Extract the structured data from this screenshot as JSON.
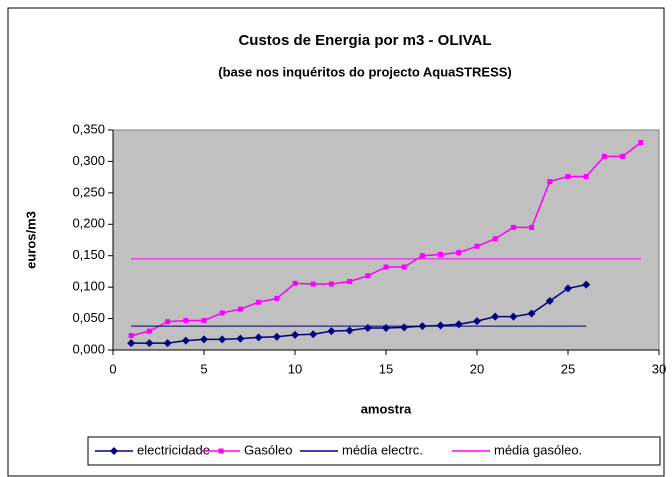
{
  "chart_data": {
    "type": "line",
    "title": "Custos de Energia por m3 - OLIVAL",
    "subtitle": "(base nos inquéritos do projecto AquaSTRESS)",
    "xlabel": "amostra",
    "ylabel": "euros/m3",
    "xlim": [
      0,
      30
    ],
    "xticks": [
      0,
      5,
      10,
      15,
      20,
      25,
      30
    ],
    "ylim": [
      0,
      0.35
    ],
    "yticks": [
      {
        "value": 0,
        "label": "0,000"
      },
      {
        "value": 0.05,
        "label": "0,050"
      },
      {
        "value": 0.1,
        "label": "0,100"
      },
      {
        "value": 0.15,
        "label": "0,150"
      },
      {
        "value": 0.2,
        "label": "0,200"
      },
      {
        "value": 0.25,
        "label": "0,250"
      },
      {
        "value": 0.3,
        "label": "0,300"
      },
      {
        "value": 0.35,
        "label": "0,350"
      }
    ],
    "legend": "bottom",
    "series": [
      {
        "name": "electricidade",
        "color": "#000080",
        "marker": "diamond",
        "x": [
          1,
          2,
          3,
          4,
          5,
          6,
          7,
          8,
          9,
          10,
          11,
          12,
          13,
          14,
          15,
          16,
          17,
          18,
          19,
          20,
          21,
          22,
          23,
          24,
          25,
          26
        ],
        "values": [
          0.011,
          0.011,
          0.011,
          0.015,
          0.017,
          0.017,
          0.018,
          0.02,
          0.021,
          0.024,
          0.025,
          0.03,
          0.031,
          0.035,
          0.035,
          0.036,
          0.038,
          0.039,
          0.041,
          0.046,
          0.053,
          0.053,
          0.058,
          0.078,
          0.098,
          0.104
        ]
      },
      {
        "name": "Gasóleo",
        "color": "#ff00ff",
        "marker": "square",
        "x": [
          1,
          2,
          3,
          4,
          5,
          6,
          7,
          8,
          9,
          10,
          11,
          12,
          13,
          14,
          15,
          16,
          17,
          18,
          19,
          20,
          21,
          22,
          23,
          24,
          25,
          26,
          27,
          28,
          29
        ],
        "values": [
          0.023,
          0.03,
          0.045,
          0.047,
          0.047,
          0.059,
          0.065,
          0.076,
          0.082,
          0.106,
          0.105,
          0.105,
          0.109,
          0.118,
          0.132,
          0.132,
          0.15,
          0.152,
          0.155,
          0.165,
          0.177,
          0.195,
          0.195,
          0.268,
          0.276,
          0.276,
          0.308,
          0.308,
          0.33
        ]
      },
      {
        "name": "média electrc.",
        "color": "#000080",
        "marker": "none",
        "x": [
          1,
          26
        ],
        "values": [
          0.038,
          0.038
        ]
      },
      {
        "name": "média gasóleo.",
        "color": "#ff00ff",
        "marker": "none",
        "x": [
          1,
          29
        ],
        "values": [
          0.145,
          0.145
        ]
      }
    ]
  }
}
